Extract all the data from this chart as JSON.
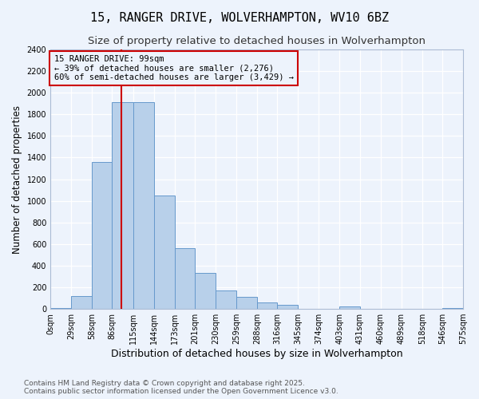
{
  "title1": "15, RANGER DRIVE, WOLVERHAMPTON, WV10 6BZ",
  "title2": "Size of property relative to detached houses in Wolverhampton",
  "xlabel": "Distribution of detached houses by size in Wolverhampton",
  "ylabel": "Number of detached properties",
  "bar_values": [
    10,
    120,
    1360,
    1910,
    1910,
    1050,
    560,
    335,
    170,
    110,
    60,
    35,
    0,
    0,
    25,
    0,
    0,
    0,
    0,
    10
  ],
  "bin_edges": [
    0,
    29,
    58,
    86,
    115,
    144,
    173,
    201,
    230,
    259,
    288,
    316,
    345,
    374,
    403,
    431,
    460,
    489,
    518,
    546,
    575
  ],
  "tick_labels": [
    "0sqm",
    "29sqm",
    "58sqm",
    "86sqm",
    "115sqm",
    "144sqm",
    "173sqm",
    "201sqm",
    "230sqm",
    "259sqm",
    "288sqm",
    "316sqm",
    "345sqm",
    "374sqm",
    "403sqm",
    "431sqm",
    "460sqm",
    "489sqm",
    "518sqm",
    "546sqm",
    "575sqm"
  ],
  "bar_color": "#b8d0ea",
  "bar_edgecolor": "#6699cc",
  "vline_x": 99,
  "vline_color": "#cc0000",
  "annotation_text": "15 RANGER DRIVE: 99sqm\n← 39% of detached houses are smaller (2,276)\n60% of semi-detached houses are larger (3,429) →",
  "annotation_box_color": "#cc0000",
  "ylim": [
    0,
    2400
  ],
  "yticks": [
    0,
    200,
    400,
    600,
    800,
    1000,
    1200,
    1400,
    1600,
    1800,
    2000,
    2200,
    2400
  ],
  "footer1": "Contains HM Land Registry data © Crown copyright and database right 2025.",
  "footer2": "Contains public sector information licensed under the Open Government Licence v3.0.",
  "bg_color": "#edf3fc",
  "grid_color": "#ffffff",
  "title1_fontsize": 11,
  "title2_fontsize": 9.5,
  "xlabel_fontsize": 9,
  "ylabel_fontsize": 8.5,
  "tick_fontsize": 7,
  "footer_fontsize": 6.5,
  "annot_fontsize": 7.5
}
